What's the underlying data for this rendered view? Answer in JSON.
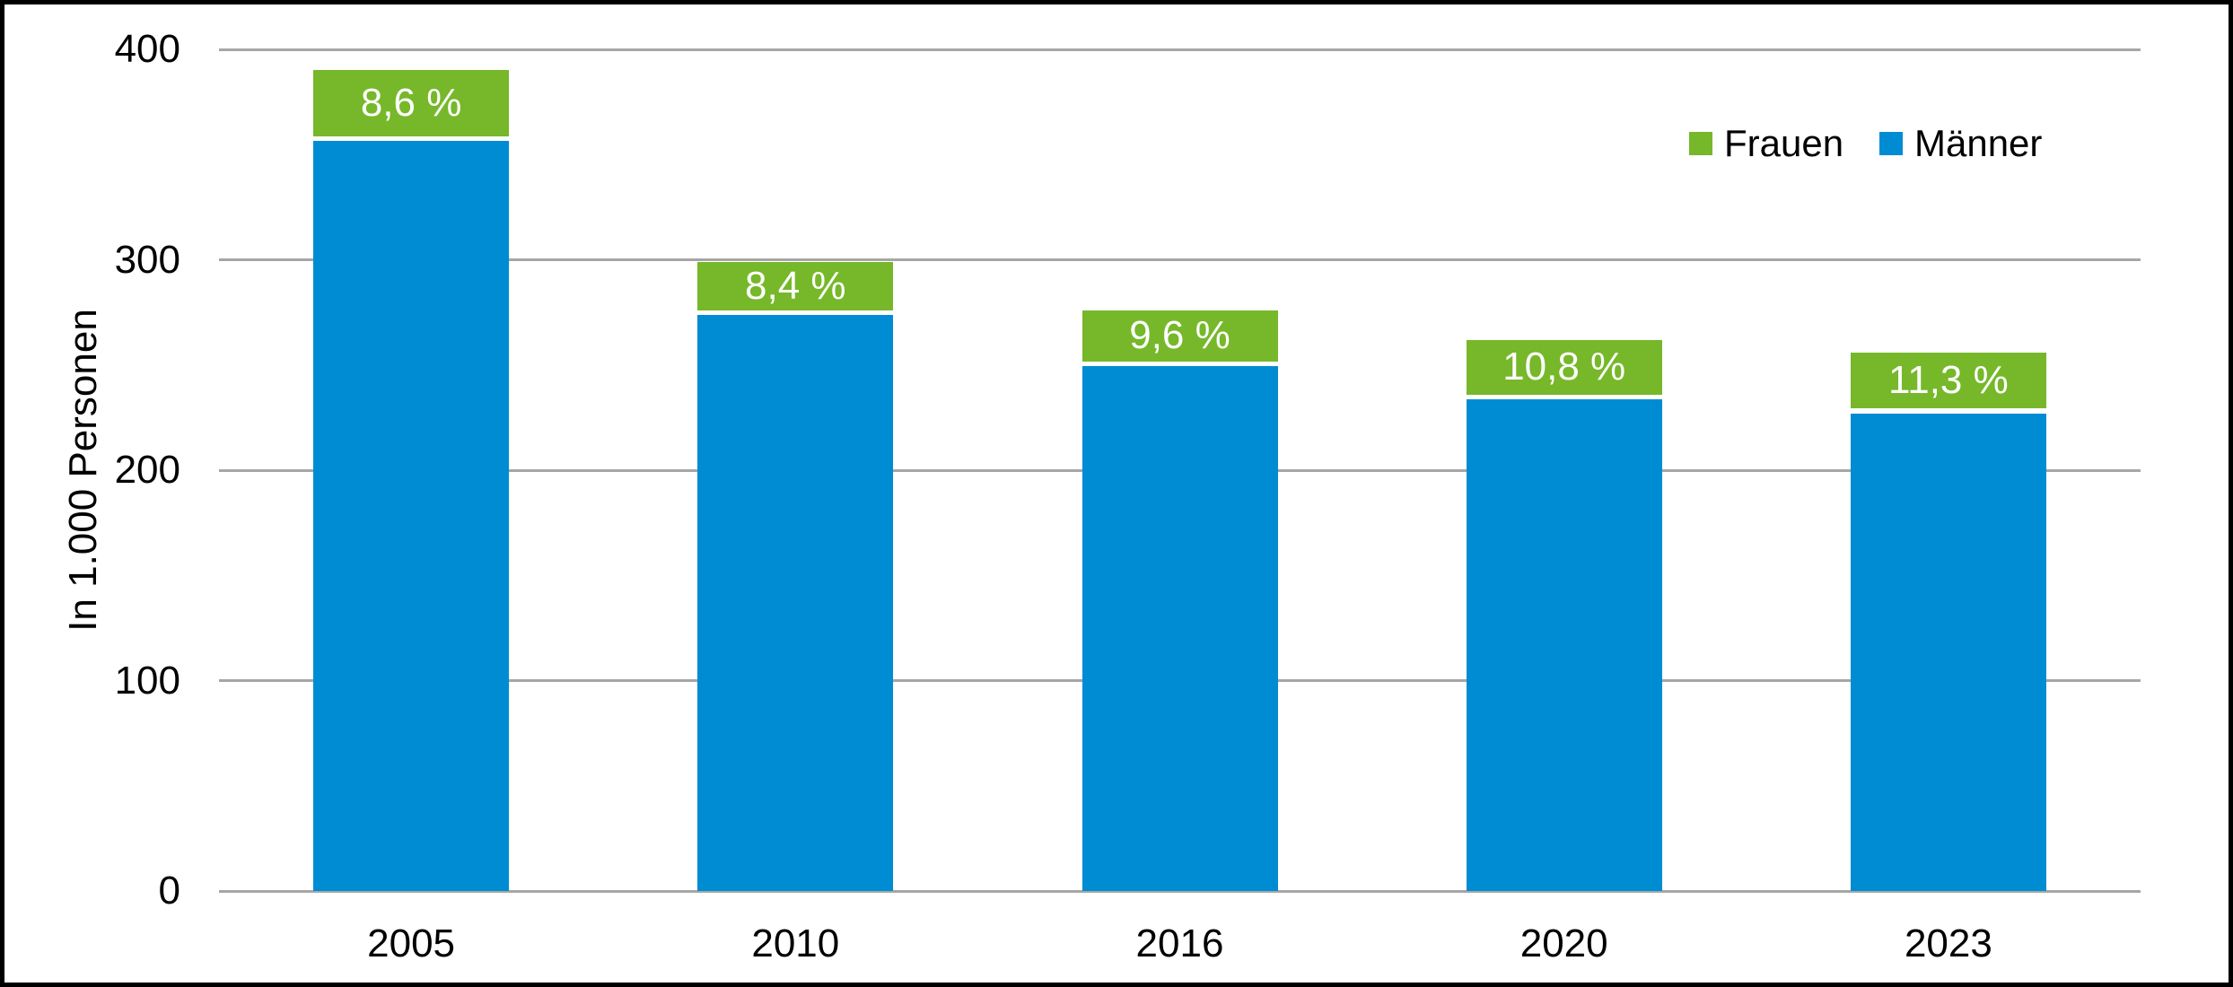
{
  "chart_data": {
    "type": "bar",
    "stacked": true,
    "categories": [
      "2005",
      "2010",
      "2016",
      "2020",
      "2023"
    ],
    "series": [
      {
        "name": "Frauen",
        "color": "#76B82A",
        "values": [
          33.5,
          25.1,
          26.5,
          28.3,
          28.9
        ]
      },
      {
        "name": "Männer",
        "color": "#008CD2",
        "values": [
          356.5,
          273.9,
          249.5,
          233.7,
          227.1
        ]
      }
    ],
    "totals": [
      390,
      299,
      276,
      262,
      256
    ],
    "bar_labels": {
      "series": "Frauen",
      "meaning": "share of Frauen in total",
      "texts": [
        "8,6 %",
        "8,4 %",
        "9,6 %",
        "10,8 %",
        "11,3 %"
      ]
    },
    "title": "",
    "xlabel": "",
    "ylabel": "In 1.000 Personen",
    "yticks": [
      0,
      100,
      200,
      300,
      400
    ],
    "ylim": [
      0,
      400
    ],
    "grid": true,
    "legend": {
      "position": "top-right",
      "entries": [
        {
          "label": "Frauen",
          "color": "#76B82A"
        },
        {
          "label": "Männer",
          "color": "#008CD2"
        }
      ]
    }
  },
  "colors": {
    "frauen": "#76B82A",
    "maenner": "#008CD2",
    "gridline": "#A6A6A6",
    "axis_text": "#000000",
    "bar_label_text": "#FFFFFF",
    "background": "#FFFFFF",
    "frame_border": "#000000"
  }
}
